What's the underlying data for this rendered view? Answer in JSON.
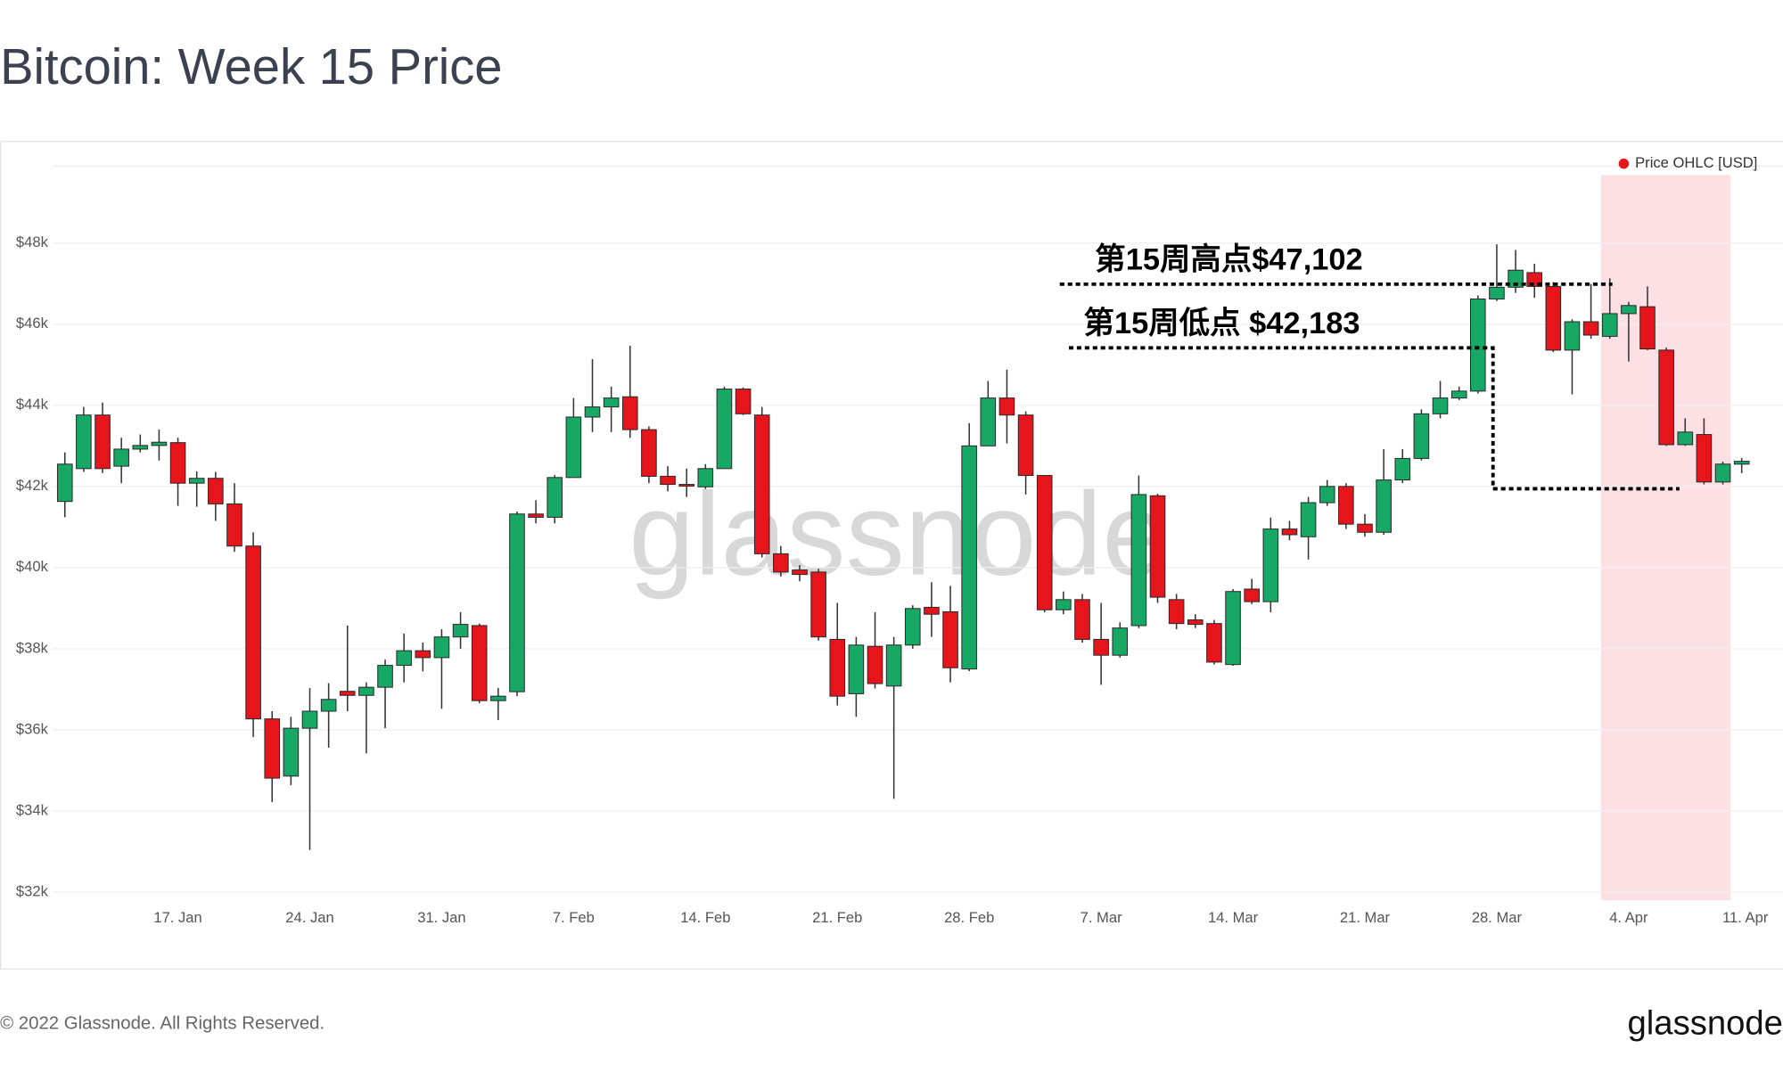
{
  "chart_data": {
    "type": "candlestick",
    "title": "Bitcoin: Week 15 Price",
    "watermark": "glassnode",
    "footer": "© 2022 Glassnode. All Rights Reserved.",
    "logo": "glassnode",
    "annotations": [
      "第15周高点$47,102",
      "第15周低点 $42,183"
    ],
    "legend": "top-right",
    "grid": true,
    "up_color": "#16a864",
    "down_color": "#e5151b",
    "categories": [
      "11. Jan",
      "12. Jan",
      "13. Jan",
      "14. Jan",
      "15. Jan",
      "16. Jan",
      "17. Jan",
      "18. Jan",
      "19. Jan",
      "20. Jan",
      "21. Jan",
      "22. Jan",
      "23. Jan",
      "24. Jan",
      "25. Jan",
      "26. Jan",
      "27. Jan",
      "28. Jan",
      "29. Jan",
      "30. Jan",
      "31. Jan",
      "1. Feb",
      "2. Feb",
      "3. Feb",
      "4. Feb",
      "5. Feb",
      "6. Feb",
      "7. Feb",
      "8. Feb",
      "9. Feb",
      "10. Feb",
      "11. Feb",
      "12. Feb",
      "13. Feb",
      "14. Feb",
      "15. Feb",
      "16. Feb",
      "17. Feb",
      "18. Feb",
      "19. Feb",
      "20. Feb",
      "21. Feb",
      "22. Feb",
      "23. Feb",
      "24. Feb",
      "25. Feb",
      "26. Feb",
      "27. Feb",
      "28. Feb",
      "1. Mar",
      "2. Mar",
      "3. Mar",
      "4. Mar",
      "5. Mar",
      "6. Mar",
      "7. Mar",
      "8. Mar",
      "9. Mar",
      "10. Mar",
      "11. Mar",
      "12. Mar",
      "13. Mar",
      "14. Mar",
      "15. Mar",
      "16. Mar",
      "17. Mar",
      "18. Mar",
      "19. Mar",
      "20. Mar",
      "21. Mar",
      "22. Mar",
      "23. Mar",
      "24. Mar",
      "25. Mar",
      "26. Mar",
      "27. Mar",
      "28. Mar",
      "29. Mar",
      "30. Mar",
      "31. Mar",
      "1. Apr",
      "2. Apr",
      "3. Apr",
      "4. Apr",
      "5. Apr",
      "6. Apr",
      "7. Apr",
      "8. Apr",
      "9. Apr",
      "10. Apr",
      "11. Apr"
    ],
    "xticks": [
      "17. Jan",
      "24. Jan",
      "31. Jan",
      "7. Feb",
      "14. Feb",
      "21. Feb",
      "28. Feb",
      "7. Mar",
      "14. Mar",
      "21. Mar",
      "28. Mar",
      "4. Apr",
      "11. Apr"
    ],
    "ylim": [
      31800,
      49900
    ],
    "yticks": [
      {
        "value": 32000,
        "label": "$32k"
      },
      {
        "value": 34000,
        "label": "$34k"
      },
      {
        "value": 36000,
        "label": "$36k"
      },
      {
        "value": 38000,
        "label": "$38k"
      },
      {
        "value": 40000,
        "label": "$40k"
      },
      {
        "value": 42000,
        "label": "$42k"
      },
      {
        "value": 44000,
        "label": "$44k"
      },
      {
        "value": 46000,
        "label": "$46k"
      },
      {
        "value": 48000,
        "label": "$48k"
      }
    ],
    "series": [
      {
        "name": "Price OHLC [USD]",
        "color": "#e5151b",
        "open": [
          41630,
          42440,
          43760,
          42500,
          42920,
          43010,
          43080,
          42080,
          42200,
          41570,
          40530,
          36270,
          34860,
          36040,
          36460,
          36950,
          36850,
          37050,
          37590,
          37950,
          37780,
          38290,
          38570,
          36720,
          36940,
          41320,
          41240,
          42220,
          43710,
          43960,
          44210,
          43400,
          42250,
          42050,
          41990,
          42440,
          44400,
          43760,
          40340,
          39940,
          39890,
          38230,
          36890,
          38060,
          37080,
          38090,
          39020,
          38910,
          37500,
          43000,
          44180,
          43760,
          42270,
          38960,
          39210,
          38230,
          37840,
          38570,
          41770,
          39210,
          38710,
          38620,
          37610,
          39470,
          39160,
          40950,
          40760,
          41600,
          42000,
          41070,
          40870,
          42160,
          42690,
          43790,
          44180,
          44350,
          46620,
          46910,
          47270,
          46930,
          45360,
          46060,
          45700,
          46260,
          46430,
          45360,
          43030,
          43280,
          42110,
          42550,
          null
        ],
        "high": [
          42840,
          43960,
          44070,
          43200,
          43280,
          43400,
          43200,
          42370,
          42360,
          42080,
          40870,
          36460,
          36320,
          37030,
          37150,
          38570,
          37170,
          37730,
          38370,
          38150,
          38480,
          38900,
          38620,
          37030,
          41380,
          41660,
          42280,
          44180,
          45140,
          44460,
          45470,
          43480,
          42500,
          42440,
          42550,
          44460,
          44440,
          43960,
          40530,
          40060,
          39970,
          39130,
          38290,
          38900,
          38290,
          39070,
          39640,
          39550,
          43560,
          44600,
          44880,
          43850,
          42270,
          39410,
          39350,
          39130,
          38650,
          42270,
          41820,
          39350,
          38850,
          38710,
          39470,
          39720,
          41230,
          41150,
          41740,
          42160,
          42080,
          41320,
          42920,
          42920,
          43900,
          44600,
          44460,
          46710,
          47970,
          47830,
          47490,
          47040,
          46120,
          46990,
          47130,
          46550,
          46930,
          45420,
          43680,
          43680,
          42610,
          42700,
          null
        ],
        "low": [
          41240,
          42360,
          42330,
          42080,
          42840,
          42640,
          41520,
          41500,
          41150,
          40390,
          35820,
          34220,
          34640,
          33040,
          35560,
          36460,
          35420,
          36040,
          37170,
          37440,
          36520,
          38000,
          36660,
          36240,
          36830,
          41090,
          41090,
          42220,
          43340,
          43340,
          43200,
          42080,
          41880,
          41740,
          41940,
          42440,
          43760,
          40250,
          39780,
          39660,
          38200,
          36600,
          36320,
          37020,
          34300,
          38000,
          38290,
          37170,
          37450,
          43000,
          43060,
          41800,
          38900,
          38850,
          38150,
          37110,
          37780,
          38510,
          39130,
          38480,
          38510,
          37610,
          37580,
          39100,
          38900,
          40670,
          40200,
          41520,
          40950,
          40760,
          40810,
          42080,
          42640,
          43680,
          44130,
          44290,
          46570,
          46770,
          46650,
          45310,
          44270,
          45640,
          45640,
          45080,
          45360,
          43000,
          43000,
          42050,
          42050,
          42330,
          null
        ],
        "close": [
          42550,
          43760,
          42440,
          42920,
          43010,
          43090,
          42080,
          42200,
          41570,
          40530,
          36270,
          34810,
          36040,
          36460,
          36750,
          36850,
          37050,
          37590,
          37950,
          37780,
          38290,
          38600,
          36720,
          36830,
          41320,
          41240,
          42220,
          43710,
          43960,
          44180,
          43400,
          42250,
          42050,
          42020,
          42440,
          44400,
          43790,
          40340,
          39890,
          39830,
          38290,
          36830,
          38090,
          37140,
          38090,
          38990,
          38850,
          37530,
          43000,
          44180,
          43760,
          42270,
          38960,
          39210,
          38230,
          37840,
          38510,
          41800,
          39270,
          38620,
          38600,
          37670,
          39410,
          39160,
          40950,
          40810,
          41600,
          42000,
          41070,
          40870,
          42160,
          42690,
          43790,
          44180,
          44350,
          46620,
          46910,
          47330,
          46930,
          45360,
          46060,
          45730,
          46260,
          46460,
          45390,
          43030,
          43340,
          42110,
          42550,
          42620,
          null
        ]
      }
    ]
  }
}
